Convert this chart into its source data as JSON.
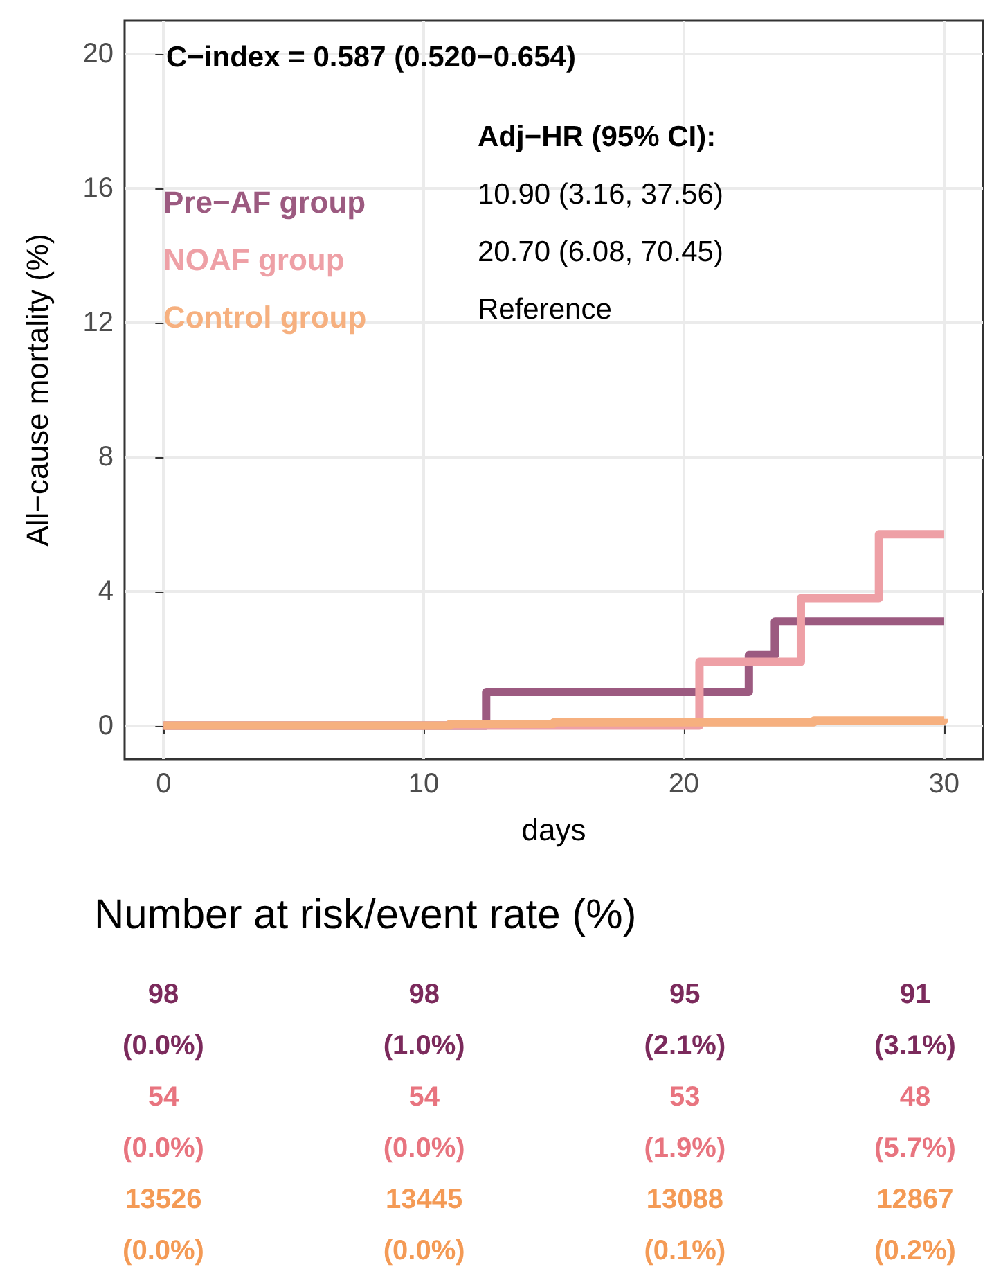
{
  "chart_data": [
    {
      "type": "step",
      "xlabel": "days",
      "ylabel": "All−cause mortality (%)",
      "xlim": [
        -1.5,
        31.5
      ],
      "ylim": [
        -1,
        21
      ],
      "xticks": [
        0,
        10,
        20,
        30
      ],
      "yticks": [
        0,
        4,
        8,
        12,
        16,
        20
      ],
      "grid": true,
      "legend": "top left",
      "marker": "none",
      "line_style": "solid",
      "annotations": [
        "C−index = 0.587 (0.520−0.654)",
        "Adj−HR (95% CI):",
        "10.90 (3.16, 37.56)",
        "20.70 (6.08, 70.45)",
        "Reference"
      ],
      "series": [
        {
          "name": "Pre−AF group",
          "color": "#9c5a80",
          "x": [
            0,
            12.4,
            22.5,
            23.5,
            30
          ],
          "values": [
            0,
            1.0,
            2.1,
            3.1,
            3.1
          ]
        },
        {
          "name": "NOAF group",
          "color": "#eea0a6",
          "x": [
            0,
            20.6,
            24.5,
            27.5,
            30
          ],
          "values": [
            0,
            1.9,
            3.8,
            5.7,
            5.7
          ]
        },
        {
          "name": "Control group",
          "color": "#f6b07f",
          "x": [
            0,
            11,
            15,
            21,
            25,
            30
          ],
          "values": [
            0,
            0.05,
            0.1,
            0.1,
            0.15,
            0.2
          ]
        }
      ]
    },
    {
      "type": "other",
      "title": "Number at risk/event rate (%)",
      "annotations": [
        "98",
        "98",
        "95",
        "91",
        "(0.0%)",
        "(1.0%)",
        "(2.1%)",
        "(3.1%)",
        "54",
        "54",
        "53",
        "48",
        "(0.0%)",
        "(0.0%)",
        "(1.9%)",
        "(5.7%)",
        "13526",
        "13445",
        "13088",
        "12867",
        "(0.0%)",
        "(0.0%)",
        "(0.1%)",
        "(0.2%)"
      ],
      "colors": [
        "#7b2a5c",
        "#e8747f",
        "#f49a55"
      ]
    }
  ]
}
